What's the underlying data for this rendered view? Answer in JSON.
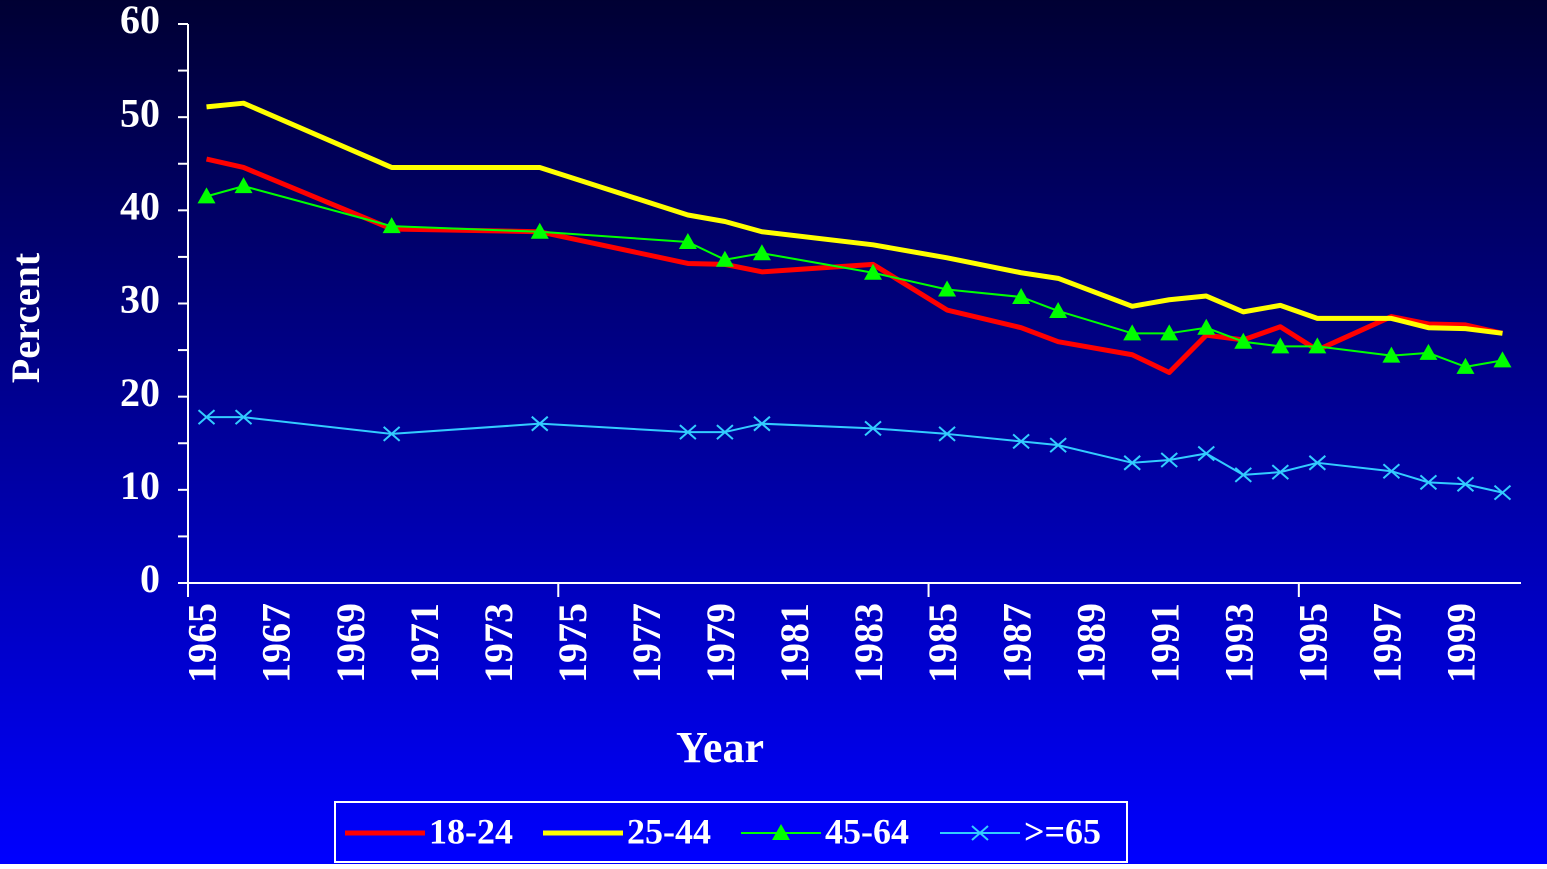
{
  "chart_data": {
    "type": "line",
    "x_label": "Year",
    "y_label": "Percent",
    "x": [
      1965,
      1966,
      1970,
      1974,
      1978,
      1979,
      1980,
      1983,
      1985,
      1987,
      1988,
      1990,
      1991,
      1992,
      1993,
      1994,
      1995,
      1997,
      1998,
      1999,
      2000
    ],
    "series": [
      {
        "name": "18-24",
        "color": "#ff0000",
        "marker": "none",
        "values": [
          45.5,
          44.6,
          38.0,
          37.7,
          34.3,
          34.2,
          33.4,
          34.2,
          29.3,
          27.4,
          25.9,
          24.5,
          22.6,
          26.6,
          26.1,
          27.5,
          25.0,
          28.6,
          27.8,
          27.7,
          26.8
        ]
      },
      {
        "name": "25-44",
        "color": "#ffff00",
        "marker": "none",
        "values": [
          51.1,
          51.5,
          44.6,
          44.6,
          39.5,
          38.8,
          37.7,
          36.3,
          34.9,
          33.3,
          32.7,
          29.7,
          30.4,
          30.8,
          29.1,
          29.8,
          28.4,
          28.4,
          27.4,
          27.3,
          26.8
        ]
      },
      {
        "name": "45-64",
        "color": "#00ff00",
        "marker": "triangle",
        "values": [
          41.5,
          42.6,
          38.3,
          37.7,
          36.6,
          34.7,
          35.4,
          33.3,
          31.5,
          30.7,
          29.2,
          26.8,
          26.8,
          27.4,
          25.9,
          25.4,
          25.4,
          24.4,
          24.7,
          23.2,
          23.9
        ]
      },
      {
        "name": ">=65",
        "color": "#33ccff",
        "marker": "x",
        "values": [
          17.8,
          17.8,
          16.0,
          17.1,
          16.2,
          16.2,
          17.1,
          16.6,
          16.0,
          15.2,
          14.8,
          12.9,
          13.2,
          13.9,
          11.6,
          11.9,
          12.9,
          12.0,
          10.8,
          10.6,
          9.7
        ]
      }
    ],
    "xlim": [
      1964.5,
      2000.5
    ],
    "xticks": [
      1965,
      1967,
      1969,
      1971,
      1973,
      1975,
      1977,
      1979,
      1981,
      1983,
      1985,
      1987,
      1989,
      1991,
      1993,
      1995,
      1997,
      1999
    ],
    "xtick_marks": [
      1964.5,
      1974.5,
      1984.5,
      1994.5
    ],
    "ylim": [
      0,
      60
    ],
    "yticks": [
      0,
      10,
      20,
      30,
      40,
      50,
      60
    ],
    "yminor_ticks": [
      5,
      15,
      25,
      35,
      45,
      55
    ],
    "grid": false,
    "legend": "bottom"
  }
}
